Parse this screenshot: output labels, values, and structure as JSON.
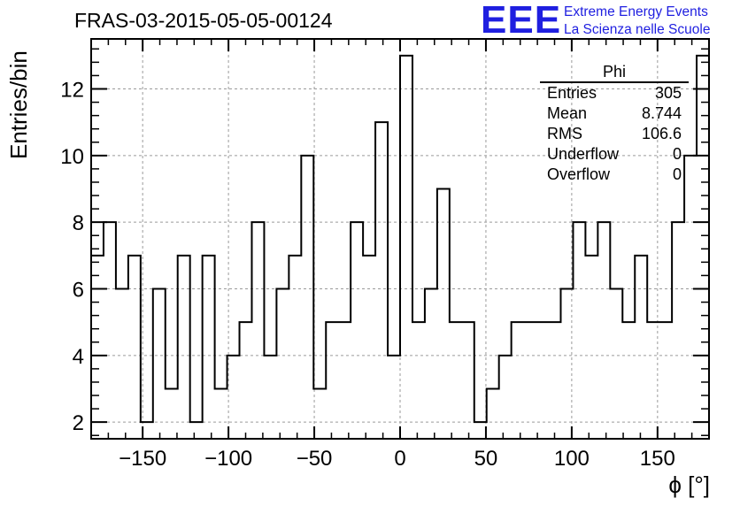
{
  "header": {
    "title": "FRAS-03-2015-05-05-00124",
    "logo_mark": "EEE",
    "logo_line1": "Extreme Energy Events",
    "logo_line2": "La Scienza nelle Scuole",
    "logo_color": "#1f1fe0"
  },
  "stats": {
    "title": "Phi",
    "rows": [
      {
        "label": "Entries",
        "value": "305"
      },
      {
        "label": "Mean",
        "value": "8.744"
      },
      {
        "label": "RMS",
        "value": "106.6"
      },
      {
        "label": "Underflow",
        "value": "0"
      },
      {
        "label": "Overflow",
        "value": "0"
      }
    ]
  },
  "chart_data": {
    "type": "histogram",
    "title": "FRAS-03-2015-05-05-00124",
    "xlabel": "ϕ [°]",
    "ylabel": "Entries/bin",
    "xlim": [
      -180,
      180
    ],
    "ylim": [
      1.5,
      13.5
    ],
    "x_ticks": [
      -150,
      -100,
      -50,
      0,
      50,
      100,
      150
    ],
    "x_tick_labels": [
      "−150",
      "−100",
      "−50",
      "0",
      "50",
      "100",
      "150"
    ],
    "y_ticks": [
      2,
      4,
      6,
      8,
      10,
      12
    ],
    "y_tick_labels": [
      "2",
      "4",
      "6",
      "8",
      "10",
      "12"
    ],
    "grid": true,
    "bin_width": 7.2,
    "values": [
      7,
      8,
      6,
      7,
      2,
      6,
      3,
      7,
      2,
      7,
      3,
      4,
      5,
      8,
      4,
      6,
      7,
      10,
      3,
      5,
      5,
      8,
      7,
      11,
      4,
      13,
      5,
      6,
      9,
      5,
      5,
      2,
      3,
      4,
      5,
      5,
      5,
      5,
      6,
      8,
      7,
      8,
      6,
      5,
      7,
      5,
      5,
      8,
      10,
      13
    ]
  }
}
